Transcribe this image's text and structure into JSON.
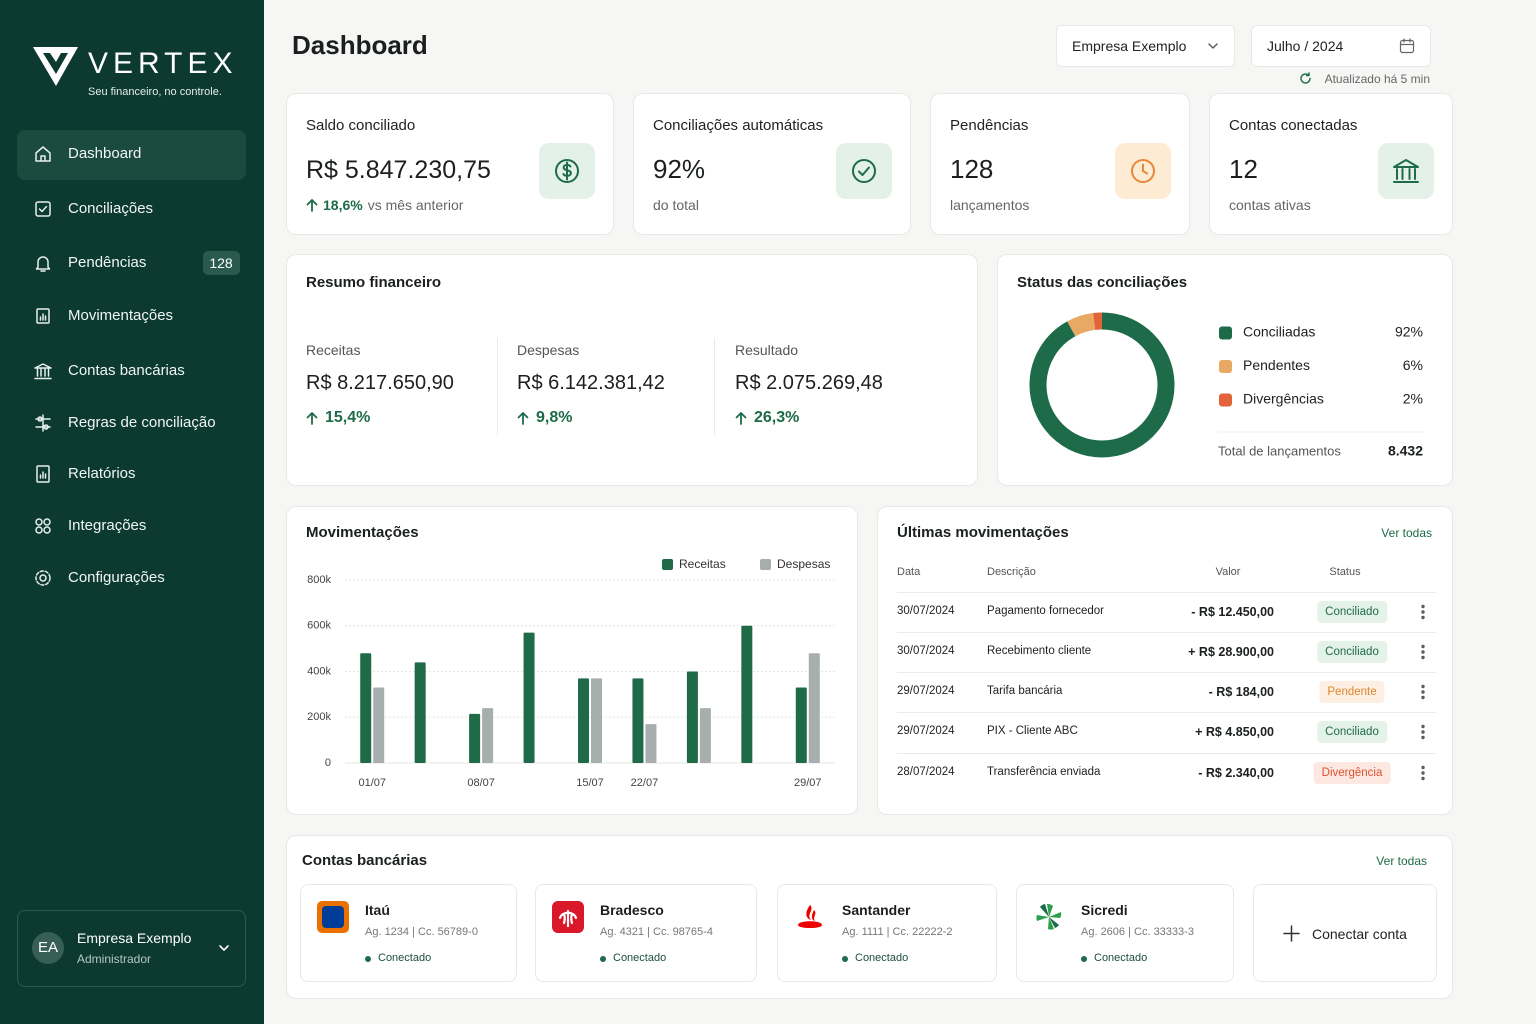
{
  "brand": {
    "name": "VERTEX",
    "tagline": "Seu financeiro, no controle."
  },
  "nav": [
    {
      "label": "Dashboard"
    },
    {
      "label": "Conciliações"
    },
    {
      "label": "Pendências",
      "badge": "128"
    },
    {
      "label": "Movimentações"
    },
    {
      "label": "Contas bancárias"
    },
    {
      "label": "Regras de conciliação"
    },
    {
      "label": "Relatórios"
    },
    {
      "label": "Integrações"
    },
    {
      "label": "Configurações"
    }
  ],
  "user": {
    "initials": "EA",
    "name": "Empresa Exemplo",
    "role": "Administrador"
  },
  "header": {
    "title": "Dashboard",
    "company": "Empresa Exemplo",
    "period": "Julho / 2024",
    "updated": "Atualizado há 5 min"
  },
  "kpis": [
    {
      "label": "Saldo conciliado",
      "value": "R$ 5.847.230,75",
      "change": "18,6%",
      "note": "vs mês anterior"
    },
    {
      "label": "Conciliações automáticas",
      "value": "92%",
      "note": "do total"
    },
    {
      "label": "Pendências",
      "value": "128",
      "note": "lançamentos"
    },
    {
      "label": "Contas conectadas",
      "value": "12",
      "note": "contas ativas"
    }
  ],
  "summary": {
    "title": "Resumo financeiro",
    "items": [
      {
        "label": "Receitas",
        "value": "R$ 8.217.650,90",
        "change": "15,4%"
      },
      {
        "label": "Despesas",
        "value": "R$ 6.142.381,42",
        "change": "9,8%"
      },
      {
        "label": "Resultado",
        "value": "R$ 2.075.269,48",
        "change": "26,3%"
      }
    ]
  },
  "chart_data": [
    {
      "type": "donut",
      "title": "Status das conciliações",
      "categories": [
        "Conciliadas",
        "Pendentes",
        "Divergências"
      ],
      "values": [
        92,
        6,
        2
      ],
      "value_labels": [
        "92%",
        "6%",
        "2%"
      ],
      "colors": [
        "#1d6b48",
        "#e9a863",
        "#e2623a"
      ],
      "total_label": "Total de lançamentos",
      "total_value": "8.432"
    },
    {
      "type": "bar",
      "title": "Movimentações",
      "categories": [
        "01/07",
        null,
        "08/07",
        null,
        "15/07",
        "22/07",
        null,
        null,
        "29/07"
      ],
      "series": [
        {
          "name": "Receitas",
          "color": "#1f6b47",
          "values": [
            480000,
            440000,
            215000,
            570000,
            370000,
            370000,
            400000,
            600000,
            330000
          ]
        },
        {
          "name": "Despesas",
          "color": "#a7aeae",
          "values": [
            330000,
            null,
            240000,
            null,
            370000,
            170000,
            240000,
            null,
            480000
          ]
        }
      ],
      "ylim": [
        0,
        800000
      ],
      "yticks": [
        0,
        {
          "value": 200000,
          "label": "200k"
        },
        {
          "value": 400000,
          "label": "400k"
        },
        {
          "value": 600000,
          "label": "600k"
        },
        {
          "value": 800000,
          "label": "800k"
        }
      ],
      "grid": true,
      "legend": "top-right"
    }
  ],
  "transactions": {
    "title": "Últimas movimentações",
    "link": "Ver todas",
    "columns": [
      "Data",
      "Descrição",
      "Valor",
      "Status"
    ],
    "rows": [
      {
        "date": "30/07/2024",
        "description": "Pagamento fornecedor",
        "value": "- R$ 12.450,00",
        "status": "Conciliado",
        "status_color": "#1d6b48",
        "status_bg": "#e5f2e9"
      },
      {
        "date": "30/07/2024",
        "description": "Recebimento cliente",
        "value": "+ R$ 28.900,00",
        "status": "Conciliado",
        "status_color": "#1d6b48",
        "status_bg": "#e5f2e9"
      },
      {
        "date": "29/07/2024",
        "description": "Tarifa bancária",
        "value": "- R$ 184,00",
        "status": "Pendente",
        "status_color": "#e0862e",
        "status_bg": "#fdf0e2"
      },
      {
        "date": "29/07/2024",
        "description": "PIX - Cliente ABC",
        "value": "+ R$ 4.850,00",
        "status": "Conciliado",
        "status_color": "#1d6b48",
        "status_bg": "#e5f2e9"
      },
      {
        "date": "28/07/2024",
        "description": "Transferência enviada",
        "value": "- R$ 2.340,00",
        "status": "Divergência",
        "status_color": "#d9532f",
        "status_bg": "#fde7e1"
      }
    ]
  },
  "accounts": {
    "title": "Contas bancárias",
    "link": "Ver todas",
    "banks": [
      {
        "name": "Itaú",
        "details": "Ag. 1234 | Cc. 56789-0",
        "status": "Conectado"
      },
      {
        "name": "Bradesco",
        "details": "Ag. 4321 | Cc. 98765-4",
        "status": "Conectado"
      },
      {
        "name": "Santander",
        "details": "Ag. 1111 | Cc. 22222-2",
        "status": "Conectado"
      },
      {
        "name": "Sicredi",
        "details": "Ag. 2606 | Cc. 33333-3",
        "status": "Conectado"
      }
    ],
    "add": "Conectar conta"
  }
}
